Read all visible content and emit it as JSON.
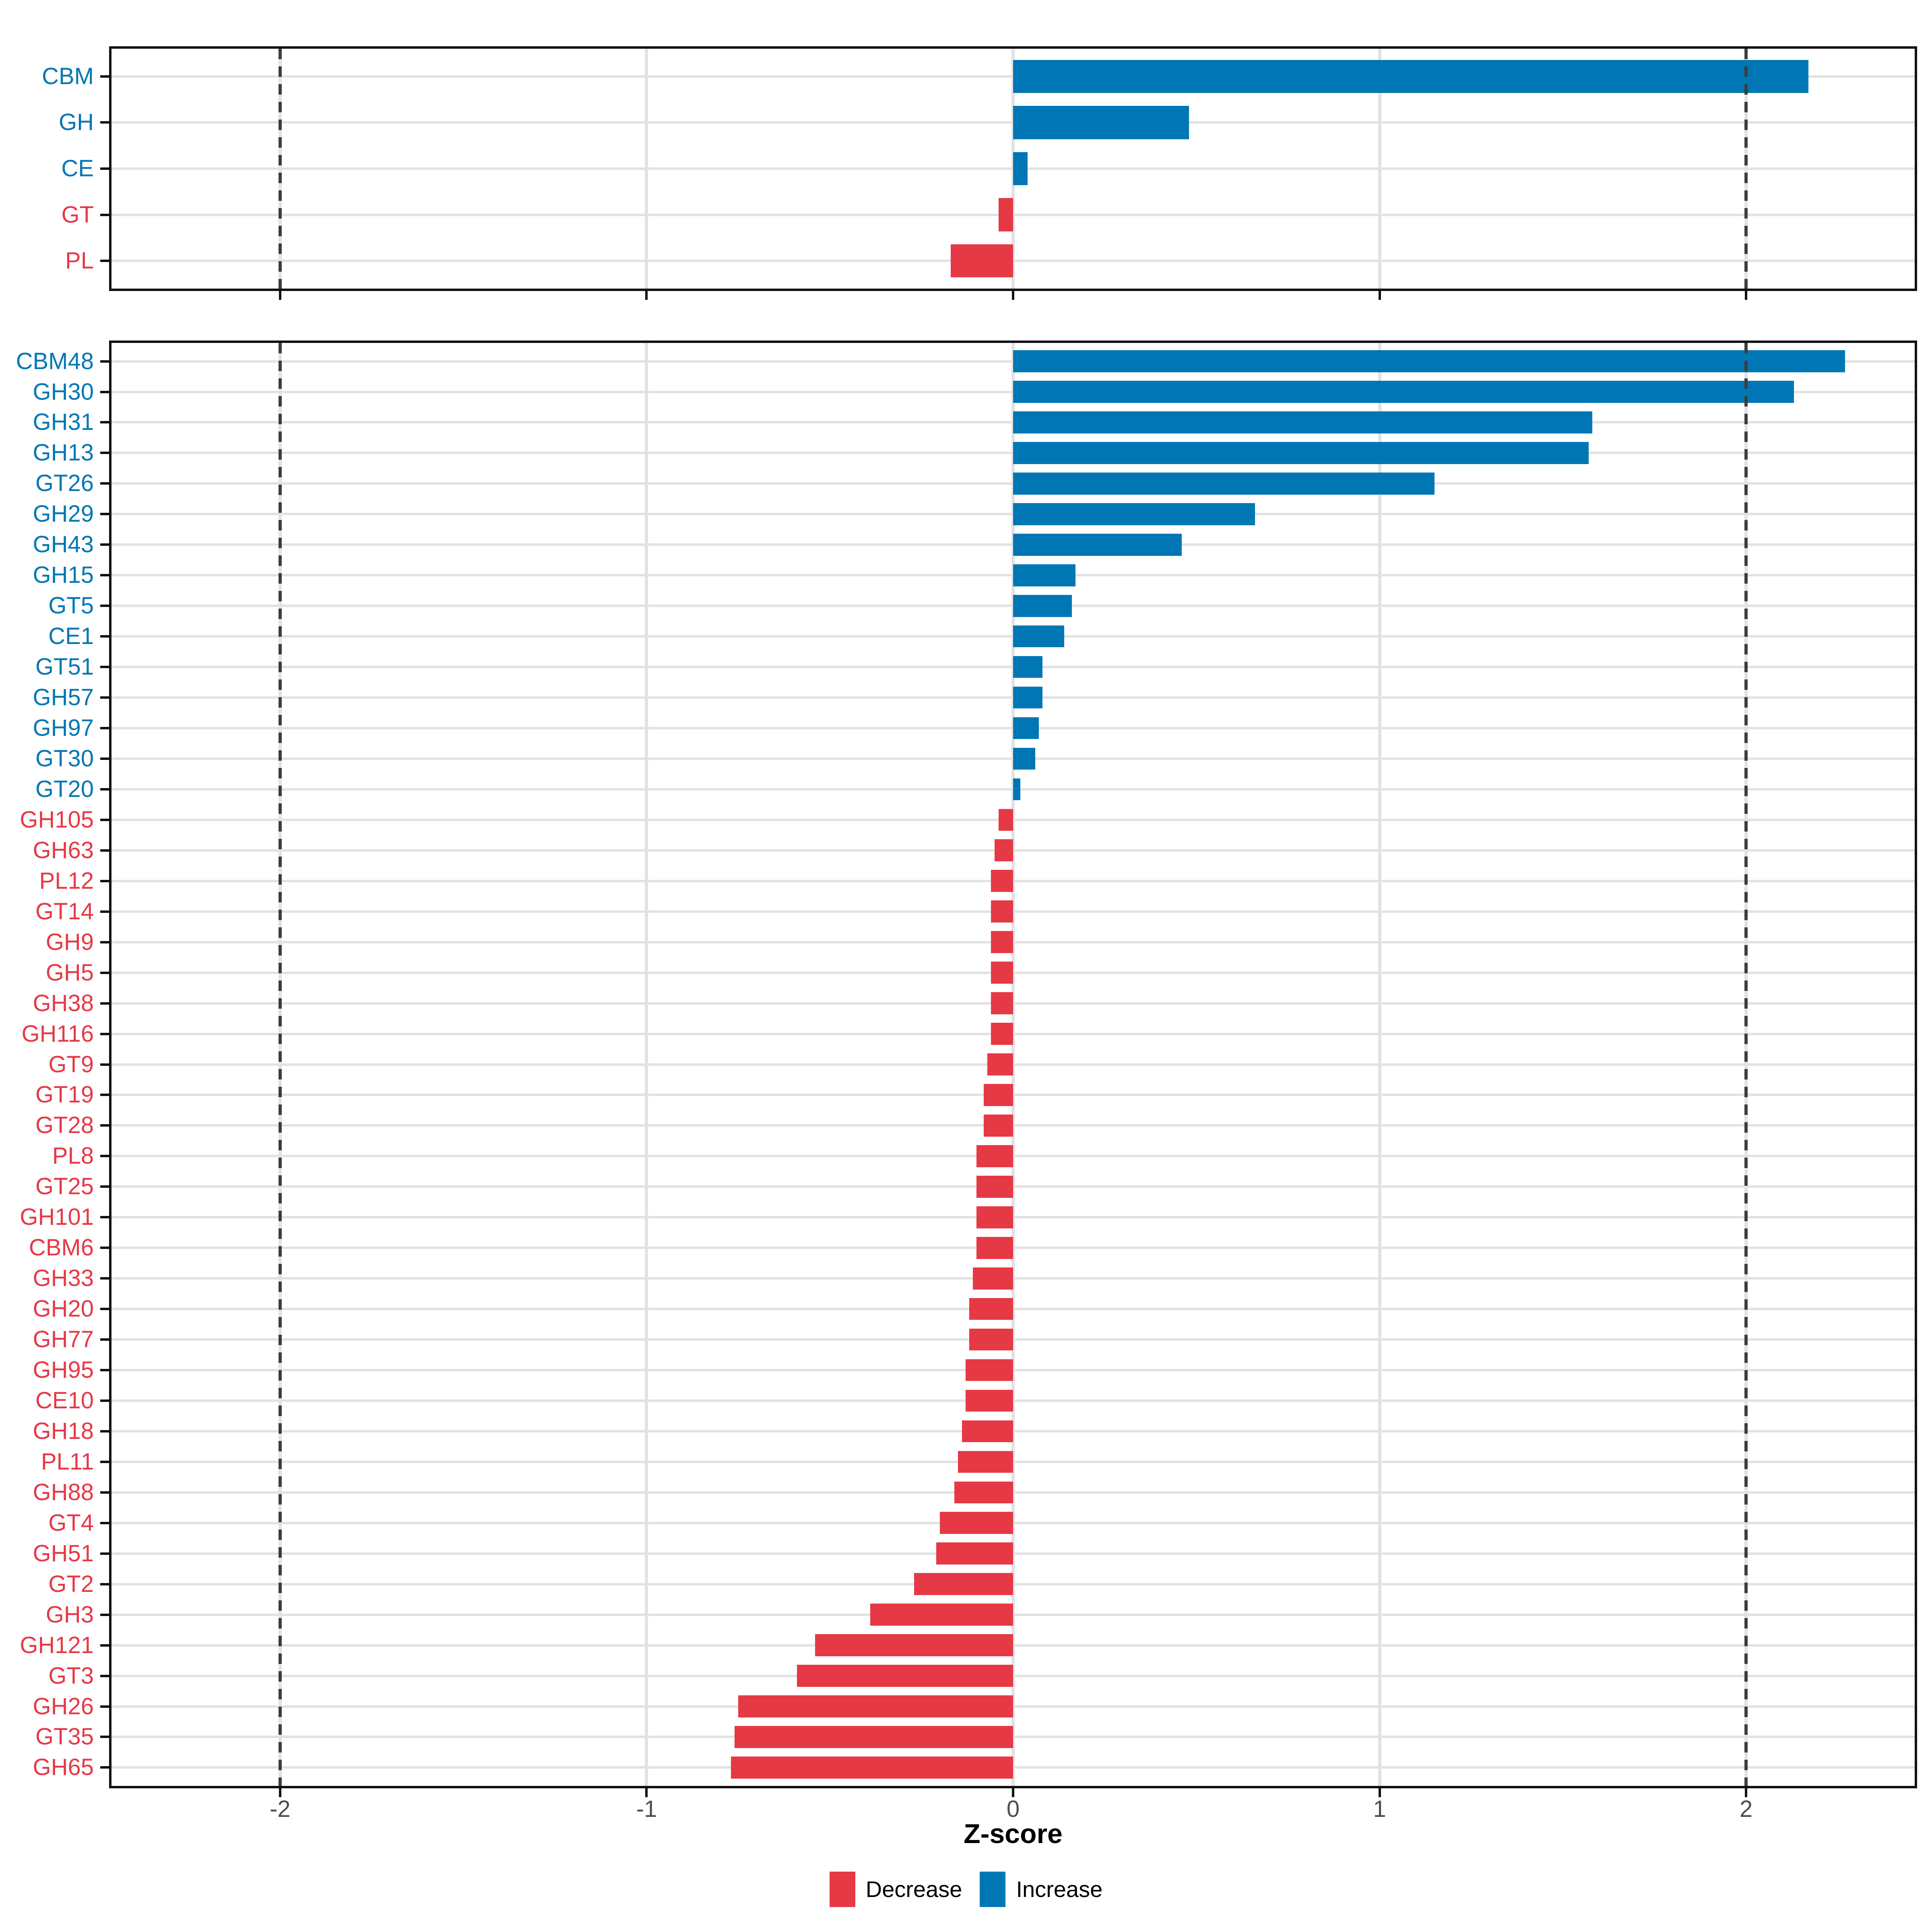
{
  "figure": {
    "background": "#FFFFFF"
  },
  "colors": {
    "increase": "#0077B4",
    "decrease": "#E63946",
    "grid": "#E2E2E2",
    "dash": "#3D3D3D",
    "border": "#111111",
    "axis_text": "#4D4D4D"
  },
  "axis": {
    "xlabel": "Z-score",
    "x_tick_labels": [
      "-2",
      "-1",
      "0",
      "1",
      "2"
    ],
    "x_tick_values": [
      -2,
      -1,
      0,
      1,
      2
    ],
    "xlim": [
      -2.46,
      2.46
    ],
    "dashed_vlines": [
      -2,
      2
    ]
  },
  "legend": [
    {
      "label": "Decrease",
      "key": "decrease"
    },
    {
      "label": "Increase",
      "key": "increase"
    }
  ],
  "chart_data": [
    {
      "type": "bar",
      "orientation": "horizontal",
      "panel": "top",
      "categories": [
        "CBM",
        "GH",
        "CE",
        "GT",
        "PL"
      ],
      "values": [
        2.17,
        0.48,
        0.04,
        -0.04,
        -0.17
      ],
      "xlabel": "Z-score",
      "xlim": [
        -2.46,
        2.46
      ],
      "grid": "on",
      "legend_position": "none"
    },
    {
      "type": "bar",
      "orientation": "horizontal",
      "panel": "bottom",
      "categories": [
        "CBM48",
        "GH30",
        "GH31",
        "GH13",
        "GT26",
        "GH29",
        "GH43",
        "GH15",
        "GT5",
        "CE1",
        "GT51",
        "GH57",
        "GH97",
        "GT30",
        "GT20",
        "GH105",
        "GH63",
        "PL12",
        "GT14",
        "GH9",
        "GH5",
        "GH38",
        "GH116",
        "GT9",
        "GT19",
        "GT28",
        "PL8",
        "GT25",
        "GH101",
        "CBM6",
        "GH33",
        "GH20",
        "GH77",
        "GH95",
        "CE10",
        "GH18",
        "PL11",
        "GH88",
        "GT4",
        "GH51",
        "GT2",
        "GH3",
        "GH121",
        "GT3",
        "GH26",
        "GT35",
        "GH65"
      ],
      "values": [
        2.27,
        2.13,
        1.58,
        1.57,
        1.15,
        0.66,
        0.46,
        0.17,
        0.16,
        0.14,
        0.08,
        0.08,
        0.07,
        0.06,
        0.02,
        -0.04,
        -0.05,
        -0.06,
        -0.06,
        -0.06,
        -0.06,
        -0.06,
        -0.06,
        -0.07,
        -0.08,
        -0.08,
        -0.1,
        -0.1,
        -0.1,
        -0.1,
        -0.11,
        -0.12,
        -0.12,
        -0.13,
        -0.13,
        -0.14,
        -0.15,
        -0.16,
        -0.2,
        -0.21,
        -0.27,
        -0.39,
        -0.54,
        -0.59,
        -0.75,
        -0.76,
        -0.77
      ],
      "xlabel": "Z-score",
      "xlim": [
        -2.46,
        2.46
      ],
      "grid": "on",
      "legend_position": "bottom"
    }
  ]
}
